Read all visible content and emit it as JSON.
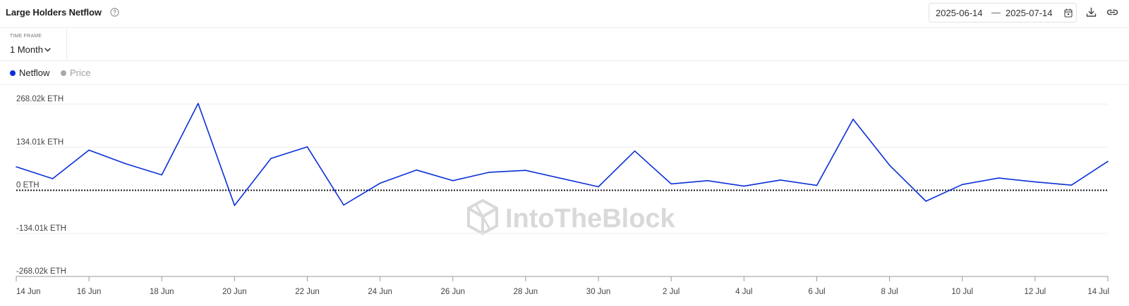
{
  "header": {
    "title": "Large Holders Netflow",
    "date_start": "2025-06-14",
    "date_separator": "—",
    "date_end": "2025-07-14",
    "icons": [
      "help-icon",
      "calendar-icon",
      "download-icon",
      "link-icon"
    ]
  },
  "timeframe": {
    "label": "TIME FRAME",
    "value": "1 Month"
  },
  "legend": [
    {
      "name": "Netflow",
      "color": "#0a2fd8",
      "active": true
    },
    {
      "name": "Price",
      "color": "#a8a8a8",
      "active": false
    }
  ],
  "watermark": "IntoTheBlock",
  "colors": {
    "line": "#0a2fd8",
    "grid": "#eeeeee",
    "zero_line": "#1a1a1a"
  },
  "chart_data": {
    "type": "line",
    "title": "Large Holders Netflow",
    "xlabel": "",
    "ylabel": "",
    "unit": "ETH",
    "ylim": [
      -268.02,
      268.02
    ],
    "y_ticks": [
      268.02,
      134.01,
      0,
      -134.01,
      -268.02
    ],
    "y_tick_labels": [
      "268.02k ETH",
      "134.01k ETH",
      "0 ETH",
      "-134.01k ETH",
      "-268.02k ETH"
    ],
    "x_tick_labels": [
      "14 Jun",
      "16 Jun",
      "18 Jun",
      "20 Jun",
      "22 Jun",
      "24 Jun",
      "26 Jun",
      "28 Jun",
      "30 Jun",
      "2 Jul",
      "4 Jul",
      "6 Jul",
      "8 Jul",
      "10 Jul",
      "12 Jul",
      "14 Jul"
    ],
    "grid": true,
    "zero_line": "dotted",
    "legend_position": "top-left",
    "series": [
      {
        "name": "Netflow",
        "x": [
          "2025-06-14",
          "2025-06-15",
          "2025-06-16",
          "2025-06-17",
          "2025-06-18",
          "2025-06-19",
          "2025-06-20",
          "2025-06-21",
          "2025-06-22",
          "2025-06-23",
          "2025-06-24",
          "2025-06-25",
          "2025-06-26",
          "2025-06-27",
          "2025-06-28",
          "2025-06-30",
          "2025-07-01",
          "2025-07-02",
          "2025-07-03",
          "2025-07-04",
          "2025-07-05",
          "2025-07-06",
          "2025-07-07",
          "2025-07-08",
          "2025-07-09",
          "2025-07-10",
          "2025-07-11",
          "2025-07-12",
          "2025-07-13",
          "2025-07-14"
        ],
        "values": [
          73,
          36,
          125,
          83,
          48,
          270,
          -47,
          99,
          135,
          -46,
          22,
          63,
          30,
          56,
          62,
          11,
          122,
          20,
          30,
          13,
          32,
          15,
          221,
          78,
          -34,
          18,
          38,
          26,
          16,
          90
        ]
      }
    ]
  }
}
